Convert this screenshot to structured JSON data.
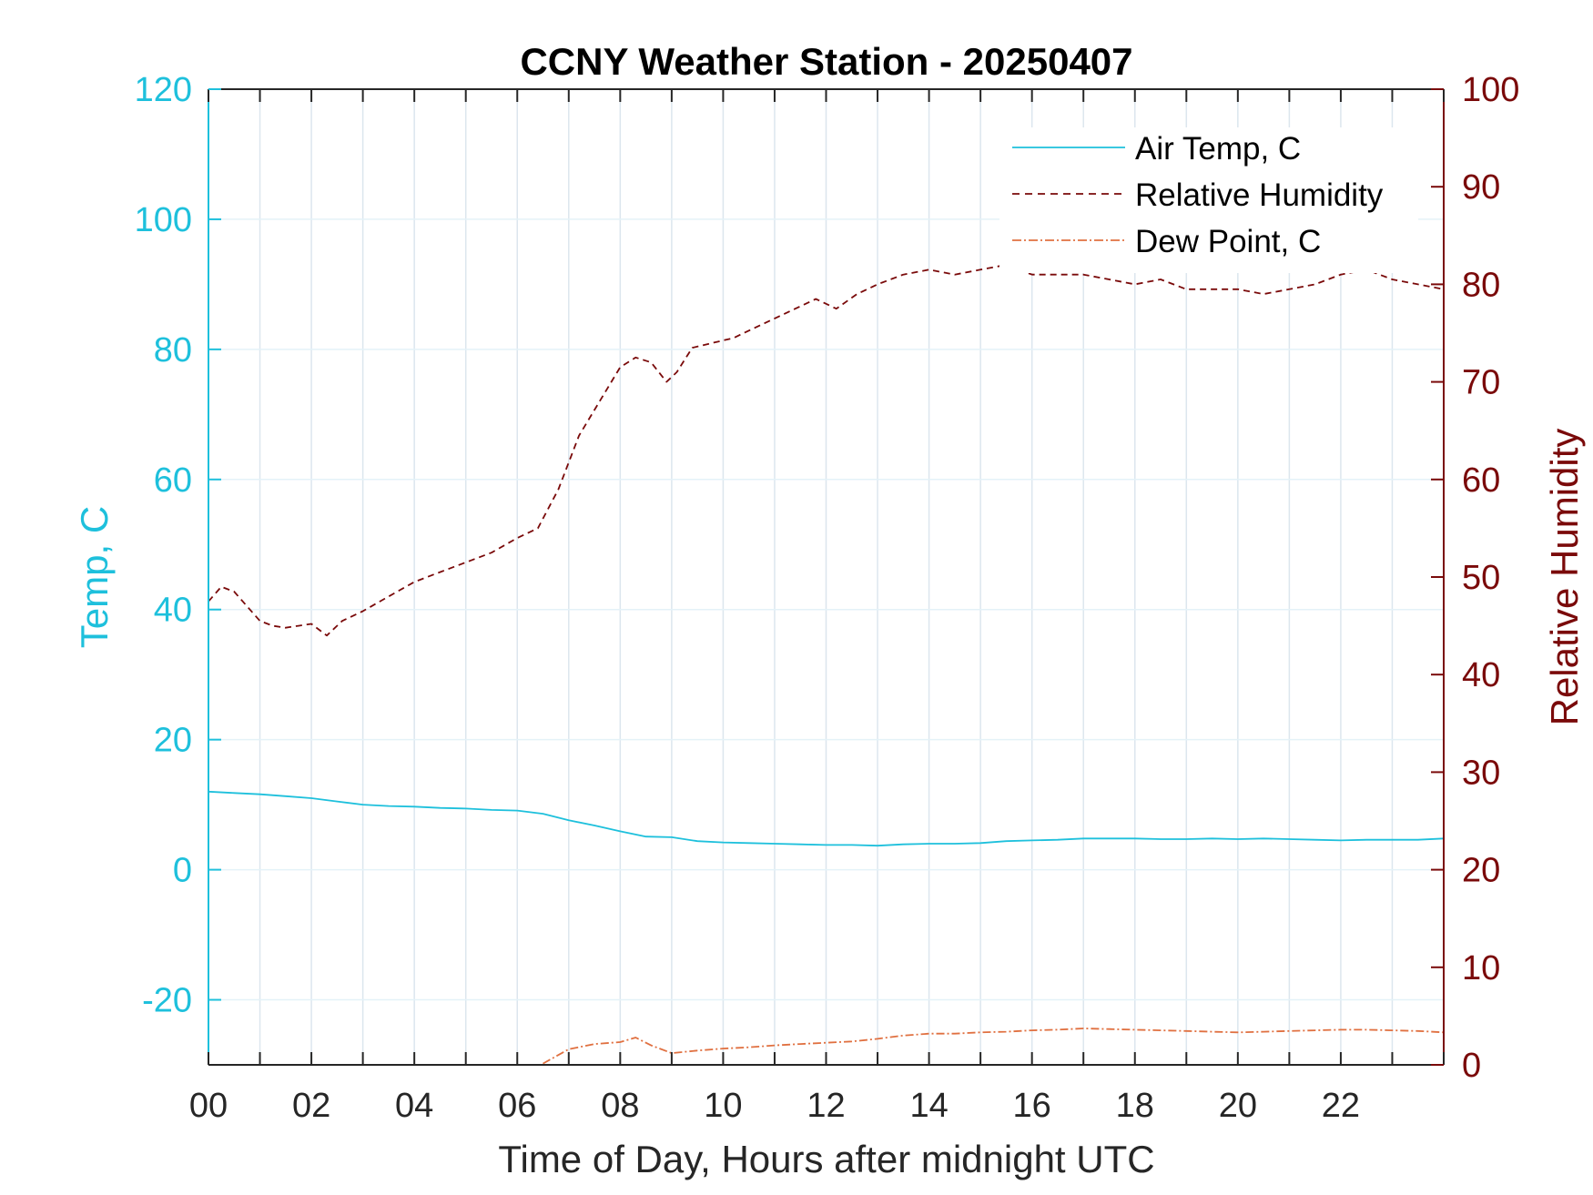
{
  "chart_data": {
    "type": "line",
    "title": "CCNY Weather Station - 20250407",
    "xlabel": "Time of Day, Hours after midnight UTC",
    "ylabel_left": "Temp, C",
    "ylabel_right": "Relative Humidity",
    "xlim": [
      0,
      24
    ],
    "ylim_left": [
      -30,
      120
    ],
    "ylim_right": [
      0,
      100
    ],
    "x_ticks": [
      0,
      2,
      4,
      6,
      8,
      10,
      12,
      14,
      16,
      18,
      20,
      22
    ],
    "x_tick_labels": [
      "00",
      "02",
      "04",
      "06",
      "08",
      "10",
      "12",
      "14",
      "16",
      "18",
      "20",
      "22"
    ],
    "y_left_ticks": [
      -20,
      0,
      20,
      40,
      60,
      80,
      100,
      120
    ],
    "y_left_tick_labels": [
      "-20",
      "0",
      "20",
      "40",
      "60",
      "80",
      "100",
      "120"
    ],
    "y_right_ticks": [
      0,
      10,
      20,
      30,
      40,
      50,
      60,
      70,
      80,
      90,
      100
    ],
    "y_right_tick_labels": [
      "0",
      "10",
      "20",
      "30",
      "40",
      "50",
      "60",
      "70",
      "80",
      "90",
      "100"
    ],
    "grid": true,
    "legend_position": "top-right",
    "colors": {
      "air_temp": "#1ec0dc",
      "humidity": "#7a0a0a",
      "dew_point": "#e07040",
      "left_axis": "#1ec0dc",
      "right_axis": "#7a0a0a",
      "grid": "#dce6ee"
    },
    "series": [
      {
        "name": "Air Temp, C",
        "axis": "left",
        "style": "solid",
        "x": [
          0,
          0.5,
          1,
          1.5,
          2,
          2.5,
          3,
          3.5,
          4,
          4.5,
          5,
          5.5,
          6,
          6.5,
          7,
          7.5,
          8,
          8.5,
          9,
          9.5,
          10,
          10.5,
          11,
          11.5,
          12,
          12.5,
          13,
          13.5,
          14,
          14.5,
          15,
          15.5,
          16,
          16.5,
          17,
          17.5,
          18,
          18.5,
          19,
          19.5,
          20,
          20.5,
          21,
          21.5,
          22,
          22.5,
          23,
          23.5,
          24
        ],
        "values": [
          12.0,
          11.8,
          11.6,
          11.3,
          11.0,
          10.5,
          10.0,
          9.8,
          9.7,
          9.5,
          9.4,
          9.2,
          9.1,
          8.6,
          7.6,
          6.8,
          5.9,
          5.1,
          5.0,
          4.4,
          4.2,
          4.1,
          4.0,
          3.9,
          3.8,
          3.8,
          3.7,
          3.9,
          4.0,
          4.0,
          4.1,
          4.4,
          4.5,
          4.6,
          4.8,
          4.8,
          4.8,
          4.7,
          4.7,
          4.8,
          4.7,
          4.8,
          4.7,
          4.6,
          4.5,
          4.6,
          4.6,
          4.6,
          4.8
        ]
      },
      {
        "name": "Relative Humidity",
        "axis": "right",
        "style": "dashed",
        "x": [
          0,
          0.25,
          0.5,
          0.75,
          1,
          1.25,
          1.5,
          1.75,
          2,
          2.3,
          2.6,
          3,
          3.5,
          4,
          4.5,
          5,
          5.5,
          6,
          6.4,
          6.8,
          7.2,
          7.6,
          8.0,
          8.3,
          8.6,
          8.9,
          9.1,
          9.4,
          9.8,
          10.2,
          10.6,
          11,
          11.4,
          11.8,
          12.2,
          12.6,
          13,
          13.5,
          14,
          14.5,
          15,
          15.5,
          16,
          16.5,
          17,
          17.5,
          18,
          18.5,
          19,
          19.5,
          20,
          20.5,
          21,
          21.5,
          22,
          22.5,
          23,
          23.5,
          24
        ],
        "values": [
          47.5,
          49.0,
          48.5,
          47.0,
          45.5,
          45.0,
          44.8,
          45.0,
          45.2,
          44.0,
          45.5,
          46.5,
          48.0,
          49.5,
          50.5,
          51.5,
          52.5,
          54.0,
          55.0,
          59.0,
          64.5,
          68.0,
          71.5,
          72.5,
          72.0,
          70.0,
          71.0,
          73.5,
          74.0,
          74.5,
          75.5,
          76.5,
          77.5,
          78.5,
          77.5,
          79.0,
          80.0,
          81.0,
          81.5,
          81.0,
          81.5,
          82.0,
          81.0,
          81.0,
          81.0,
          80.5,
          80.0,
          80.5,
          79.5,
          79.5,
          79.5,
          79.0,
          79.5,
          80.0,
          81.0,
          81.5,
          80.5,
          80.0,
          79.5
        ]
      },
      {
        "name": "Dew Point, C",
        "axis": "left",
        "style": "dash-dot",
        "x": [
          6.5,
          7.0,
          7.5,
          8.0,
          8.3,
          8.6,
          9.0,
          9.5,
          10,
          10.5,
          11,
          11.5,
          12,
          12.5,
          13,
          13.5,
          14,
          14.5,
          15,
          15.5,
          16,
          16.5,
          17,
          17.5,
          18,
          18.5,
          19,
          19.5,
          20,
          20.5,
          21,
          21.5,
          22,
          22.5,
          23,
          23.5,
          24
        ],
        "values": [
          -29.8,
          -27.6,
          -26.8,
          -26.5,
          -25.8,
          -27.0,
          -28.2,
          -27.8,
          -27.5,
          -27.3,
          -27.0,
          -26.8,
          -26.6,
          -26.4,
          -26.0,
          -25.5,
          -25.2,
          -25.2,
          -25.0,
          -24.9,
          -24.7,
          -24.6,
          -24.4,
          -24.5,
          -24.6,
          -24.7,
          -24.8,
          -24.9,
          -25.0,
          -24.9,
          -24.8,
          -24.7,
          -24.6,
          -24.6,
          -24.7,
          -24.8,
          -25.0
        ]
      }
    ]
  }
}
